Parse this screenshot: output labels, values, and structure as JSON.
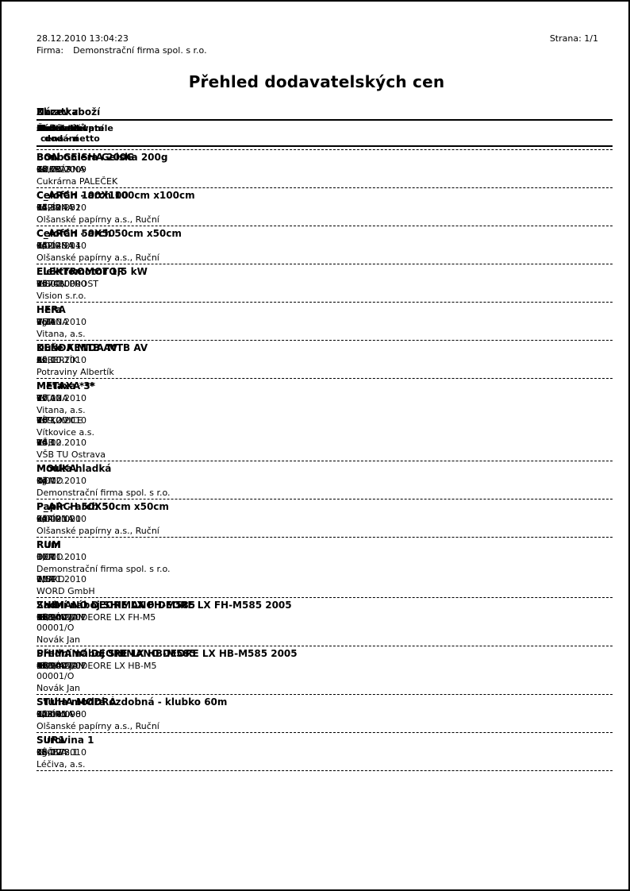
{
  "page": {
    "printed_at": "28.12.2010  13:04:23",
    "firm_label": "Firma:",
    "firm_name": "Demonstrační firma spol. s r.o.",
    "page_number": "Strana: 1/1",
    "title": "Přehled dodavatelských cen"
  },
  "columns": {
    "zkratka": "Zkratka",
    "nazev": "Název zboží",
    "dodavatel": "Dodavatel",
    "kod_dodavatele": "Kód dodavatele",
    "mnozstvi": "Množství",
    "cena_line1": "Čistá nákupní",
    "cena_line2": "cena - netto",
    "dny_line1": "Počet dnů",
    "dny_line2": "dodání",
    "kod": "Kód",
    "kontrakt": "Kontrakt",
    "akt": "Akt"
  },
  "groups": [
    {
      "code": "BON GEISHA 200G",
      "name": "Bonboniera Geisha 200g",
      "rows": [
        {
          "supplier": "CUKRÁRNA",
          "supplier_code": "G26523",
          "qty": "0",
          "unit": "ks",
          "price": "38,70",
          "currency": "Kč",
          "days": "0",
          "kod": "",
          "kontrakt_lines": [],
          "date": "12.06.2009",
          "supplier_full": "Cukrárna PALEČEK"
        }
      ]
    },
    {
      "code": "C_ARCH 100X100",
      "name": "Celofán - arch 100cm x100cm",
      "rows": [
        {
          "supplier": "PAPÍRNA",
          "supplier_code": "652.14.32",
          "qty": "0",
          "unit": "ks",
          "price": "17,80",
          "currency": "Kč",
          "days": "0",
          "kod": "",
          "kontrakt_lines": [],
          "date": "14.12.2010",
          "supplier_full": "Olšanské papírny a.s., Ruční"
        }
      ]
    },
    {
      "code": "C_ARCH 50X50",
      "name": "Celofán - arch 50cm x50cm",
      "rows": [
        {
          "supplier": "PAPÍRNA",
          "supplier_code": "652.48.14",
          "qty": "0",
          "unit": "ks",
          "price": "0,00",
          "currency": "Kč",
          "days": "0",
          "kod": "",
          "kontrakt_lines": [],
          "date": "14.12.2010",
          "supplier_full": "Olšanské papírny a.s., Ruční"
        }
      ]
    },
    {
      "code": "ELEKTROMOTOR",
      "name": "Elektromotor 1,5 kW",
      "rows": [
        {
          "supplier": "VISION PROST",
          "supplier_code": "35743",
          "qty": "0",
          "unit": "ks",
          "price": "1 000,00",
          "currency": "Kč",
          "days": "3",
          "kod": "",
          "kontrakt_lines": [],
          "date": "00.00.0000",
          "supplier_full": "Vision s.r.o."
        }
      ]
    },
    {
      "code": "HERA",
      "name": "Hera",
      "rows": [
        {
          "supplier": "VITANA",
          "supplier_code": "",
          "qty": "0",
          "unit": "kg",
          "price": "1,30",
          "currency": "EUR",
          "days": "0",
          "kod": "",
          "kontrakt_lines": [],
          "date": "25.10.2010",
          "supplier_full": "Vitana, a.s."
        }
      ]
    },
    {
      "code": "KENDA MTB AV",
      "name": "Duše KENDA MTB AV",
      "rows": [
        {
          "supplier": "ALBERTÍK",
          "supplier_code": "",
          "qty": "0",
          "unit": "ks",
          "price": "20,00",
          "currency": "Kč",
          "days": "0",
          "kod": "",
          "kontrakt_lines": [],
          "date": "22.10.2010",
          "supplier_full": "Potraviny Albertík"
        }
      ]
    },
    {
      "code": "METAXA 3*",
      "name": "Metaxa ***",
      "rows": [
        {
          "supplier": "VITANA",
          "supplier_code": "",
          "qty": "0",
          "unit": "ks",
          "price": "77,00",
          "currency": "Kč",
          "days": "0",
          "kod": "",
          "kontrakt_lines": [],
          "date": "10.12.2010",
          "supplier_full": "Vitana, a.s."
        },
        {
          "supplier": "VÍTKOVICE",
          "supplier_code": "",
          "qty": "0",
          "unit": "ks",
          "price": "789,00",
          "currency": "Kč",
          "days": "0",
          "kod": "",
          "kontrakt_lines": [],
          "date": "10.12.2010",
          "supplier_full": "Vítkovice a.s."
        },
        {
          "supplier": "VŠB",
          "supplier_code": "",
          "qty": "0",
          "unit": "ks",
          "price": "24,00",
          "currency": "Kč",
          "days": "0",
          "kod": "",
          "kontrakt_lines": [],
          "date": "10.12.2010",
          "supplier_full": "VŠB TU Ostrava"
        }
      ]
    },
    {
      "code": "MOUKA",
      "name": "Mouka hladká",
      "rows": [
        {
          "supplier": "DEMO",
          "supplier_code": "",
          "qty": "0",
          "unit": "kg",
          "price": "0,00",
          "currency": "Kč",
          "days": "12",
          "kod": "",
          "kontrakt_lines": [],
          "date": "14.12.2010",
          "supplier_full": "Demonstrační firma spol. s r.o."
        }
      ]
    },
    {
      "code": "P_ARCH 50X50",
      "name": "Papír - arch 50cm x50cm",
      "rows": [
        {
          "supplier": "PAPÍRNA",
          "supplier_code": "214.21.21",
          "qty": "0",
          "unit": "ks",
          "price": "0,00",
          "currency": "Kč",
          "days": "0",
          "kod": "",
          "kontrakt_lines": [],
          "date": "00.00.0000",
          "supplier_full": "Olšanské papírny a.s., Ruční"
        }
      ]
    },
    {
      "code": "RUM",
      "name": "Rum",
      "rows": [
        {
          "supplier": "DEMO",
          "supplier_code": "",
          "qty": "0",
          "unit": "l",
          "price": "1,00",
          "currency": "EUR",
          "days": "0",
          "kod": "",
          "kontrakt_lines": [],
          "date": "11.11.2010",
          "supplier_full": "Demonstrační firma spol. s r.o."
        },
        {
          "supplier": "WORD",
          "supplier_code": "",
          "qty": "0",
          "unit": "l",
          "price": "1,50",
          "currency": "EUR",
          "days": "0",
          "kod": "",
          "kontrakt_lines": [],
          "date": "11.11.2010",
          "supplier_full": "WORD GmbH"
        }
      ]
    },
    {
      "code": "SHIMANO DEORE LX FH-M585",
      "name": "Zadní náboj SHIMANO DEORE LX FH-M585 2005",
      "rows": [
        {
          "supplier": "NOVÁK JAN",
          "supplier_code": "SHIMANO DEORE LX FH-M5",
          "qty": "0",
          "unit": "ks",
          "price": "653,00",
          "currency": "Kč",
          "days": "0",
          "kod": "KT",
          "kontrakt_lines": [
            "KT/2007/0",
            "00001/O"
          ],
          "date": "19.04.2007",
          "supplier_full": "Novák Jan"
        }
      ]
    },
    {
      "code": "SHIMANO DEORE LX HB-M585",
      "name": "Přední náboj SHIMANO DEORE LX HB-M585 2005",
      "rows": [
        {
          "supplier": "NOVÁK JAN",
          "supplier_code": "SHIMANO DEORE LX HB-M5",
          "qty": "0",
          "unit": "ks",
          "price": "413,00",
          "currency": "Kč",
          "days": "0",
          "kod": "KT",
          "kontrakt_lines": [
            "KT/2007/0",
            "00001/O"
          ],
          "date": "19.04.2007",
          "supplier_full": "Novák Jan"
        }
      ]
    },
    {
      "code": "STUHA MODRÁ",
      "name": "Stuha modrá ozdobná  - klubko 60m",
      "rows": [
        {
          "supplier": "PAPÍRNA",
          "supplier_code": "123.41.98",
          "qty": "0",
          "unit": "klubko",
          "price": "0,00",
          "currency": "Kč",
          "days": "0",
          "kod": "",
          "kontrakt_lines": [],
          "date": "00.00.0000",
          "supplier_full": "Olšanské papírny a.s., Ruční"
        }
      ]
    },
    {
      "code": "SUR1",
      "name": "Surovina 1",
      "rows": [
        {
          "supplier": "LÉČIVA",
          "supplier_code": "124578.1",
          "qty": "0",
          "unit": "kg",
          "price": "15,00",
          "currency": "Kč",
          "days": "0",
          "kod": "",
          "kontrakt_lines": [],
          "date": "16.12.2010",
          "supplier_full": "Léčiva, a.s."
        }
      ]
    }
  ]
}
